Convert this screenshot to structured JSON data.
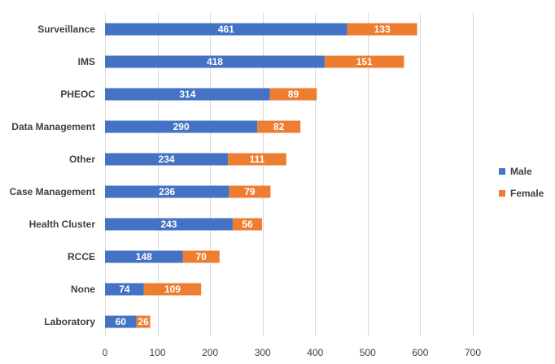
{
  "chart_data": {
    "type": "bar",
    "orientation": "horizontal",
    "stacked": true,
    "title": "",
    "xlabel": "",
    "ylabel": "",
    "categories": [
      "Surveillance",
      "IMS",
      "PHEOC",
      "Data Management",
      "Other",
      "Case Management",
      "Health Cluster",
      "RCCE",
      "None",
      "Laboratory"
    ],
    "series": [
      {
        "name": "Male",
        "color": "#4472c4",
        "values": [
          461,
          418,
          314,
          290,
          234,
          236,
          243,
          148,
          74,
          60
        ]
      },
      {
        "name": "Female",
        "color": "#ed7d31",
        "values": [
          133,
          151,
          89,
          82,
          111,
          79,
          56,
          70,
          109,
          26
        ]
      }
    ],
    "xlim": [
      0,
      700
    ],
    "xticks": [
      0,
      100,
      200,
      300,
      400,
      500,
      600,
      700
    ],
    "grid": "vertical",
    "legend": "right"
  }
}
